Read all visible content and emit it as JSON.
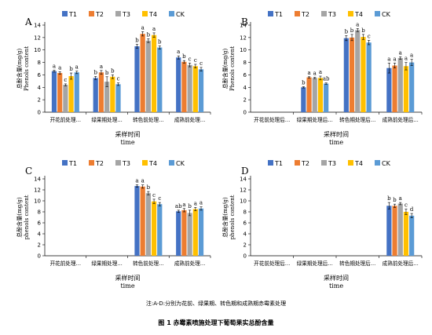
{
  "caption": "图 1 赤霉素喷施处理下葡萄果实总酚含量",
  "note": "注:A-D:分别为花前、绿果期、转色期和成熟期赤霉素处理",
  "colors": {
    "T1": "#4472C4",
    "T2": "#ED7D31",
    "T3": "#A5A5A5",
    "T4": "#FFC000",
    "CK": "#5B9BD5"
  },
  "chart_data": [
    {
      "panel": "A",
      "type": "bar",
      "ylabel_cn": "总酚含量(mg/g)",
      "ylabel_en": "Phenols content",
      "xlabel_cn": "采样时间",
      "xlabel_en": "time",
      "categories": [
        "开花前处理…",
        "绿果期处理…",
        "转色前处理…",
        "成熟前处理…"
      ],
      "ylim": [
        0,
        14
      ],
      "yticks": [
        0,
        2,
        4,
        6,
        8,
        10,
        12,
        14
      ],
      "series": [
        {
          "name": "T1",
          "values": [
            6.6,
            5.5,
            10.6,
            8.8
          ],
          "errors": [
            0.15,
            0.25,
            0.3,
            0.25
          ],
          "letters": [
            "a",
            "b",
            "b",
            "a"
          ]
        },
        {
          "name": "T2",
          "values": [
            6.3,
            6.4,
            12.6,
            8.1
          ],
          "errors": [
            0.2,
            0.3,
            0.35,
            0.2
          ],
          "letters": [
            "a",
            "a",
            "a",
            "b"
          ]
        },
        {
          "name": "T3",
          "values": [
            4.4,
            4.9,
            11.5,
            7.6
          ],
          "errors": [
            0.15,
            0.8,
            0.3,
            0.3
          ],
          "letters": [
            "c",
            "b",
            "b",
            "c"
          ]
        },
        {
          "name": "T4",
          "values": [
            5.8,
            5.7,
            12.4,
            7.4
          ],
          "errors": [
            0.5,
            0.3,
            0.35,
            0.3
          ],
          "letters": [
            "b",
            "b",
            "a",
            "c"
          ]
        },
        {
          "name": "CK",
          "values": [
            6.4,
            4.5,
            10.4,
            6.9
          ],
          "errors": [
            0.2,
            0.2,
            0.25,
            0.3
          ],
          "letters": [
            "a",
            "c",
            "b",
            "c"
          ]
        }
      ]
    },
    {
      "panel": "B",
      "type": "bar",
      "ylabel_cn": "总酚含量(mg/g)",
      "ylabel_en": "Phenols content",
      "xlabel_cn": "采样时间",
      "xlabel_en": "time",
      "categories": [
        "开花前处理后…",
        "绿果期处理后…",
        "转色期处理后…",
        "成熟前处理后…"
      ],
      "ylim": [
        0,
        14
      ],
      "yticks": [
        0,
        2,
        4,
        6,
        8,
        10,
        12,
        14
      ],
      "series": [
        {
          "name": "T1",
          "values": [
            null,
            4.0,
            11.9,
            7.1
          ],
          "errors": [
            null,
            0.1,
            0.4,
            0.8
          ],
          "letters": [
            "",
            "b",
            "b",
            "a"
          ]
        },
        {
          "name": "T2",
          "values": [
            null,
            5.6,
            12.0,
            7.5
          ],
          "errors": [
            null,
            0.1,
            0.5,
            0.4
          ],
          "letters": [
            "",
            "a",
            "b",
            "a"
          ]
        },
        {
          "name": "T3",
          "values": [
            null,
            5.5,
            13.2,
            8.7
          ],
          "errors": [
            null,
            0.1,
            0.25,
            0.2
          ],
          "letters": [
            "",
            "a",
            "a",
            "a"
          ]
        },
        {
          "name": "T4",
          "values": [
            null,
            5.5,
            12.1,
            7.4
          ],
          "errors": [
            null,
            0.3,
            0.4,
            0.6
          ],
          "letters": [
            "",
            "a",
            "b",
            "a"
          ]
        },
        {
          "name": "CK",
          "values": [
            null,
            4.6,
            11.2,
            8.0
          ],
          "errors": [
            null,
            0.1,
            0.35,
            0.5
          ],
          "letters": [
            "",
            "ab",
            "c",
            "a"
          ]
        }
      ]
    },
    {
      "panel": "C",
      "type": "bar",
      "ylabel_cn": "总酚含量(mg/g)",
      "ylabel_en": "phenols content",
      "xlabel_cn": "采样时间",
      "xlabel_en": "time",
      "categories": [
        "开花前处理…",
        "绿果期处理…",
        "转色前处理…",
        "成熟前处理…"
      ],
      "ylim": [
        0,
        14
      ],
      "yticks": [
        0,
        2,
        4,
        6,
        8,
        10,
        12,
        14
      ],
      "series": [
        {
          "name": "T1",
          "values": [
            null,
            null,
            12.7,
            8.1
          ],
          "errors": [
            null,
            null,
            0.2,
            0.2
          ],
          "letters": [
            "",
            "",
            "a",
            "ab"
          ]
        },
        {
          "name": "T2",
          "values": [
            null,
            null,
            12.6,
            8.3
          ],
          "errors": [
            null,
            null,
            0.3,
            0.3
          ],
          "letters": [
            "",
            "",
            "a",
            "a"
          ]
        },
        {
          "name": "T3",
          "values": [
            null,
            null,
            11.4,
            7.8
          ],
          "errors": [
            null,
            null,
            0.3,
            0.5
          ],
          "letters": [
            "",
            "",
            "b",
            "b"
          ]
        },
        {
          "name": "T4",
          "values": [
            null,
            null,
            9.9,
            8.5
          ],
          "errors": [
            null,
            null,
            0.4,
            0.3
          ],
          "letters": [
            "",
            "",
            "c",
            "a"
          ]
        },
        {
          "name": "CK",
          "values": [
            null,
            null,
            9.4,
            8.6
          ],
          "errors": [
            null,
            null,
            0.3,
            0.3
          ],
          "letters": [
            "",
            "",
            "c",
            "a"
          ]
        }
      ]
    },
    {
      "panel": "D",
      "type": "bar",
      "ylabel_cn": "总酚含量(mg/g)",
      "ylabel_en": "phenols content",
      "xlabel_cn": "采样时间",
      "xlabel_en": "time",
      "categories": [
        "开花前处理后…",
        "绿果期处理后…",
        "转色期处理后…",
        "成熟前处理后…"
      ],
      "ylim": [
        0,
        14
      ],
      "yticks": [
        0,
        2,
        4,
        6,
        8,
        10,
        12,
        14
      ],
      "series": [
        {
          "name": "T1",
          "values": [
            null,
            null,
            null,
            9.1
          ],
          "errors": [
            null,
            null,
            null,
            0.6
          ],
          "letters": [
            "",
            "",
            "",
            "b"
          ]
        },
        {
          "name": "T2",
          "values": [
            null,
            null,
            null,
            9.1
          ],
          "errors": [
            null,
            null,
            null,
            0.3
          ],
          "letters": [
            "",
            "",
            "",
            "b"
          ]
        },
        {
          "name": "T3",
          "values": [
            null,
            null,
            null,
            9.5
          ],
          "errors": [
            null,
            null,
            null,
            0.2
          ],
          "letters": [
            "",
            "",
            "",
            "a"
          ]
        },
        {
          "name": "T4",
          "values": [
            null,
            null,
            null,
            8.0
          ],
          "errors": [
            null,
            null,
            null,
            0.5
          ],
          "letters": [
            "",
            "",
            "",
            "c"
          ]
        },
        {
          "name": "CK",
          "values": [
            null,
            null,
            null,
            7.3
          ],
          "errors": [
            null,
            null,
            null,
            0.4
          ],
          "letters": [
            "",
            "",
            "",
            "d"
          ]
        }
      ]
    }
  ]
}
